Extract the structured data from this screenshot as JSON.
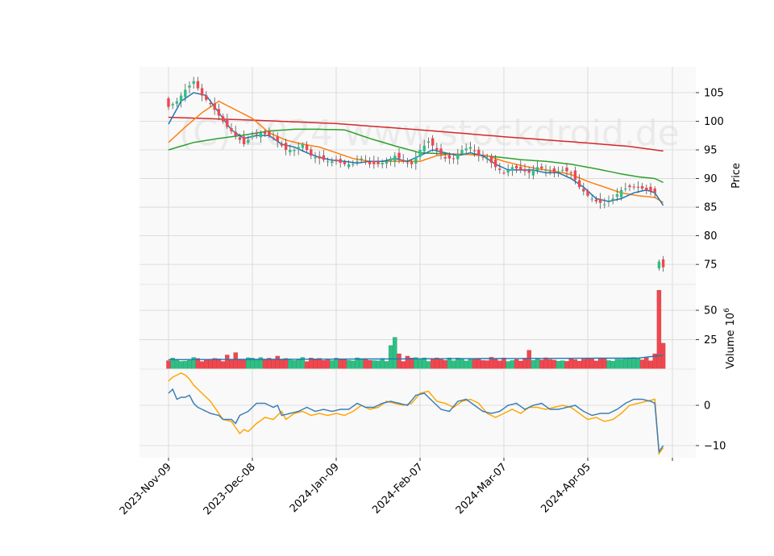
{
  "chart_data": {
    "type": "candlestick",
    "watermark": "(C) 2024 www.stockdroid.de",
    "x_tick_labels": [
      "2023-Nov-09",
      "2023-Dec-08",
      "2024-Jan-09",
      "2024-Feb-07",
      "2024-Mar-07",
      "2024-Apr-05"
    ],
    "x_tick_index": [
      0,
      20,
      40,
      60,
      80,
      100
    ],
    "n_bars": 119,
    "colors": {
      "up": "#2fbf84",
      "down": "#f0474f",
      "ma_blue": "#1f77b4",
      "ma_orange": "#ff7f0e",
      "ma_green": "#2ca02c",
      "ma_red": "#d62728",
      "osc_fast": "#3a7fb5",
      "osc_slow": "#ffa500",
      "grid": "#d5d5d5",
      "panel_bg": "#f9f9f9"
    },
    "price_panel": {
      "ylabel": "Price",
      "ylim": [
        71.5,
        109.5
      ],
      "yticks": [
        75,
        80,
        85,
        90,
        95,
        100,
        105
      ],
      "close_anchors": [
        [
          0,
          102.5
        ],
        [
          2,
          103.5
        ],
        [
          4,
          105.5
        ],
        [
          6,
          107
        ],
        [
          8,
          104.5
        ],
        [
          10,
          103
        ],
        [
          12,
          101
        ],
        [
          14,
          99
        ],
        [
          16,
          97.5
        ],
        [
          18,
          96
        ],
        [
          20,
          97.5
        ],
        [
          22,
          98
        ],
        [
          24,
          97.5
        ],
        [
          26,
          96.5
        ],
        [
          28,
          95
        ],
        [
          30,
          95
        ],
        [
          32,
          96
        ],
        [
          34,
          94
        ],
        [
          36,
          93.5
        ],
        [
          38,
          93
        ],
        [
          40,
          93
        ],
        [
          42,
          92.5
        ],
        [
          44,
          92.5
        ],
        [
          46,
          93.5
        ],
        [
          48,
          92.5
        ],
        [
          50,
          92.5
        ],
        [
          52,
          93
        ],
        [
          54,
          94
        ],
        [
          56,
          93
        ],
        [
          58,
          92.5
        ],
        [
          60,
          95
        ],
        [
          62,
          96.5
        ],
        [
          64,
          95
        ],
        [
          66,
          93.5
        ],
        [
          68,
          93.5
        ],
        [
          70,
          95
        ],
        [
          72,
          95.5
        ],
        [
          74,
          94
        ],
        [
          76,
          93.5
        ],
        [
          78,
          92
        ],
        [
          80,
          91
        ],
        [
          82,
          92
        ],
        [
          84,
          91.5
        ],
        [
          86,
          91
        ],
        [
          88,
          92
        ],
        [
          90,
          91.5
        ],
        [
          92,
          91
        ],
        [
          94,
          91.5
        ],
        [
          96,
          91
        ],
        [
          98,
          88.5
        ],
        [
          100,
          87
        ],
        [
          102,
          86
        ],
        [
          104,
          85.5
        ],
        [
          106,
          86.5
        ],
        [
          108,
          88
        ],
        [
          110,
          88.5
        ],
        [
          112,
          88.5
        ],
        [
          114,
          88
        ],
        [
          116,
          87.5
        ],
        [
          117,
          75.5
        ],
        [
          118,
          74.5
        ]
      ],
      "ma_blue_anchors": [
        [
          0,
          99.5
        ],
        [
          3,
          103.5
        ],
        [
          6,
          105
        ],
        [
          9,
          104.5
        ],
        [
          12,
          101.5
        ],
        [
          15,
          98.5
        ],
        [
          18,
          97
        ],
        [
          21,
          97.5
        ],
        [
          24,
          97.5
        ],
        [
          27,
          96
        ],
        [
          30,
          95.5
        ],
        [
          33,
          94.5
        ],
        [
          36,
          93.7
        ],
        [
          39,
          93.2
        ],
        [
          42,
          93
        ],
        [
          45,
          92.7
        ],
        [
          48,
          93
        ],
        [
          51,
          93
        ],
        [
          54,
          93.5
        ],
        [
          57,
          93
        ],
        [
          60,
          94
        ],
        [
          63,
          95
        ],
        [
          66,
          94.5
        ],
        [
          69,
          94
        ],
        [
          72,
          94.5
        ],
        [
          75,
          94
        ],
        [
          78,
          92.5
        ],
        [
          81,
          91.5
        ],
        [
          84,
          91.5
        ],
        [
          87,
          91.5
        ],
        [
          90,
          91
        ],
        [
          93,
          91
        ],
        [
          96,
          90
        ],
        [
          99,
          88.5
        ],
        [
          102,
          86.5
        ],
        [
          105,
          86
        ],
        [
          108,
          86.5
        ],
        [
          111,
          87.5
        ],
        [
          114,
          88
        ],
        [
          116,
          87.5
        ],
        [
          118,
          85.3
        ]
      ],
      "ma_orange_anchors": [
        [
          0,
          96.3
        ],
        [
          4,
          99
        ],
        [
          8,
          101.5
        ],
        [
          12,
          103.5
        ],
        [
          16,
          102
        ],
        [
          20,
          100.5
        ],
        [
          24,
          98
        ],
        [
          28,
          96.7
        ],
        [
          32,
          96
        ],
        [
          36,
          95.5
        ],
        [
          40,
          94.5
        ],
        [
          44,
          93.5
        ],
        [
          48,
          93
        ],
        [
          52,
          93
        ],
        [
          56,
          93
        ],
        [
          60,
          93
        ],
        [
          64,
          94
        ],
        [
          68,
          94.3
        ],
        [
          72,
          94.2
        ],
        [
          76,
          94
        ],
        [
          80,
          93
        ],
        [
          84,
          92.3
        ],
        [
          88,
          91.7
        ],
        [
          92,
          91.3
        ],
        [
          96,
          90.7
        ],
        [
          100,
          89.5
        ],
        [
          104,
          88.5
        ],
        [
          108,
          87.5
        ],
        [
          112,
          87
        ],
        [
          116,
          86.7
        ],
        [
          118,
          85.8
        ]
      ],
      "ma_green_anchors": [
        [
          0,
          95
        ],
        [
          6,
          96.3
        ],
        [
          12,
          97
        ],
        [
          18,
          97.6
        ],
        [
          24,
          98.3
        ],
        [
          30,
          98.6
        ],
        [
          36,
          98.6
        ],
        [
          42,
          98.5
        ],
        [
          48,
          97
        ],
        [
          54,
          95.7
        ],
        [
          60,
          94.5
        ],
        [
          66,
          94.3
        ],
        [
          72,
          94.2
        ],
        [
          78,
          93.8
        ],
        [
          84,
          93.3
        ],
        [
          90,
          93
        ],
        [
          96,
          92.5
        ],
        [
          102,
          91.7
        ],
        [
          108,
          90.8
        ],
        [
          112,
          90.3
        ],
        [
          116,
          90
        ],
        [
          118,
          89.3
        ]
      ],
      "ma_red_anchors": [
        [
          0,
          100.7
        ],
        [
          20,
          100.2
        ],
        [
          40,
          99.6
        ],
        [
          60,
          98.5
        ],
        [
          80,
          97.3
        ],
        [
          100,
          96.2
        ],
        [
          110,
          95.6
        ],
        [
          116,
          95
        ],
        [
          118,
          94.8
        ]
      ]
    },
    "volume_panel": {
      "ylabel": "Volume",
      "scale_label": "10",
      "scale_exponent": "6",
      "ylim": [
        0,
        72
      ],
      "yticks": [
        25,
        50
      ],
      "base_level": 8,
      "spikes": [
        [
          7,
          9
        ],
        [
          14,
          12
        ],
        [
          16,
          14
        ],
        [
          26,
          11
        ],
        [
          28,
          9
        ],
        [
          53,
          20
        ],
        [
          54,
          27
        ],
        [
          55,
          13
        ],
        [
          57,
          11
        ],
        [
          77,
          10
        ],
        [
          86,
          16
        ],
        [
          116,
          13
        ],
        [
          117,
          67
        ],
        [
          118,
          22
        ]
      ]
    },
    "oscillator_panel": {
      "ylim": [
        -13,
        9
      ],
      "yticks": [
        -10,
        0
      ],
      "fast_anchors": [
        [
          0,
          3
        ],
        [
          1,
          4
        ],
        [
          2,
          1.5
        ],
        [
          3,
          2
        ],
        [
          4,
          2
        ],
        [
          5,
          2.5
        ],
        [
          6,
          0.5
        ],
        [
          7,
          -0.5
        ],
        [
          8,
          -1
        ],
        [
          10,
          -2
        ],
        [
          12,
          -2.5
        ],
        [
          13,
          -3.5
        ],
        [
          15,
          -3.5
        ],
        [
          16,
          -4.5
        ],
        [
          17,
          -2.5
        ],
        [
          19,
          -1.5
        ],
        [
          21,
          0.5
        ],
        [
          23,
          0.5
        ],
        [
          25,
          -0.5
        ],
        [
          26,
          0
        ],
        [
          27,
          -2.5
        ],
        [
          29,
          -2
        ],
        [
          31,
          -1.5
        ],
        [
          33,
          -0.5
        ],
        [
          35,
          -1.5
        ],
        [
          37,
          -1
        ],
        [
          39,
          -1.5
        ],
        [
          41,
          -1
        ],
        [
          43,
          -1
        ],
        [
          45,
          0.5
        ],
        [
          47,
          -0.5
        ],
        [
          49,
          -0.5
        ],
        [
          51,
          0.5
        ],
        [
          53,
          1
        ],
        [
          55,
          0.5
        ],
        [
          57,
          0
        ],
        [
          59,
          2.5
        ],
        [
          61,
          3
        ],
        [
          63,
          1
        ],
        [
          65,
          -1
        ],
        [
          67,
          -1.5
        ],
        [
          69,
          1
        ],
        [
          71,
          1.5
        ],
        [
          73,
          0
        ],
        [
          75,
          -1.5
        ],
        [
          77,
          -2
        ],
        [
          79,
          -1.5
        ],
        [
          81,
          0
        ],
        [
          83,
          0.5
        ],
        [
          85,
          -1
        ],
        [
          87,
          0
        ],
        [
          89,
          0.5
        ],
        [
          91,
          -1
        ],
        [
          93,
          -1
        ],
        [
          95,
          -0.5
        ],
        [
          97,
          0
        ],
        [
          99,
          -1.5
        ],
        [
          101,
          -2.5
        ],
        [
          103,
          -2
        ],
        [
          105,
          -2
        ],
        [
          107,
          -1
        ],
        [
          109,
          0.5
        ],
        [
          111,
          1.5
        ],
        [
          113,
          1.5
        ],
        [
          115,
          1
        ],
        [
          116,
          0.5
        ],
        [
          117,
          -11.5
        ],
        [
          118,
          -10
        ]
      ],
      "slow_anchors": [
        [
          0,
          6
        ],
        [
          1,
          7
        ],
        [
          2,
          7.5
        ],
        [
          3,
          8
        ],
        [
          4,
          7.5
        ],
        [
          5,
          6.5
        ],
        [
          6,
          5
        ],
        [
          8,
          3
        ],
        [
          10,
          1
        ],
        [
          12,
          -2
        ],
        [
          13,
          -3.5
        ],
        [
          15,
          -4
        ],
        [
          17,
          -7
        ],
        [
          18,
          -6
        ],
        [
          19,
          -6.5
        ],
        [
          21,
          -4.5
        ],
        [
          23,
          -3
        ],
        [
          25,
          -3.5
        ],
        [
          27,
          -1.5
        ],
        [
          28,
          -3.5
        ],
        [
          30,
          -2
        ],
        [
          32,
          -1.5
        ],
        [
          34,
          -2.5
        ],
        [
          36,
          -2
        ],
        [
          38,
          -2.5
        ],
        [
          40,
          -2
        ],
        [
          42,
          -2.5
        ],
        [
          44,
          -1.5
        ],
        [
          46,
          0
        ],
        [
          48,
          -1
        ],
        [
          50,
          -0.5
        ],
        [
          52,
          1
        ],
        [
          54,
          0.5
        ],
        [
          56,
          0
        ],
        [
          58,
          0.5
        ],
        [
          60,
          3
        ],
        [
          62,
          3.5
        ],
        [
          64,
          1
        ],
        [
          66,
          0.5
        ],
        [
          68,
          -0.5
        ],
        [
          70,
          1
        ],
        [
          72,
          1.5
        ],
        [
          74,
          0.5
        ],
        [
          76,
          -2
        ],
        [
          78,
          -3
        ],
        [
          80,
          -2
        ],
        [
          82,
          -1
        ],
        [
          84,
          -2
        ],
        [
          86,
          -0.5
        ],
        [
          88,
          -0.5
        ],
        [
          90,
          -1
        ],
        [
          92,
          -0.5
        ],
        [
          94,
          0
        ],
        [
          96,
          -0.5
        ],
        [
          98,
          -2
        ],
        [
          100,
          -3.5
        ],
        [
          102,
          -3
        ],
        [
          104,
          -4
        ],
        [
          106,
          -3.5
        ],
        [
          108,
          -2
        ],
        [
          110,
          0
        ],
        [
          112,
          0.5
        ],
        [
          114,
          1
        ],
        [
          116,
          1.5
        ],
        [
          117,
          -12
        ],
        [
          118,
          -10.5
        ]
      ]
    }
  }
}
